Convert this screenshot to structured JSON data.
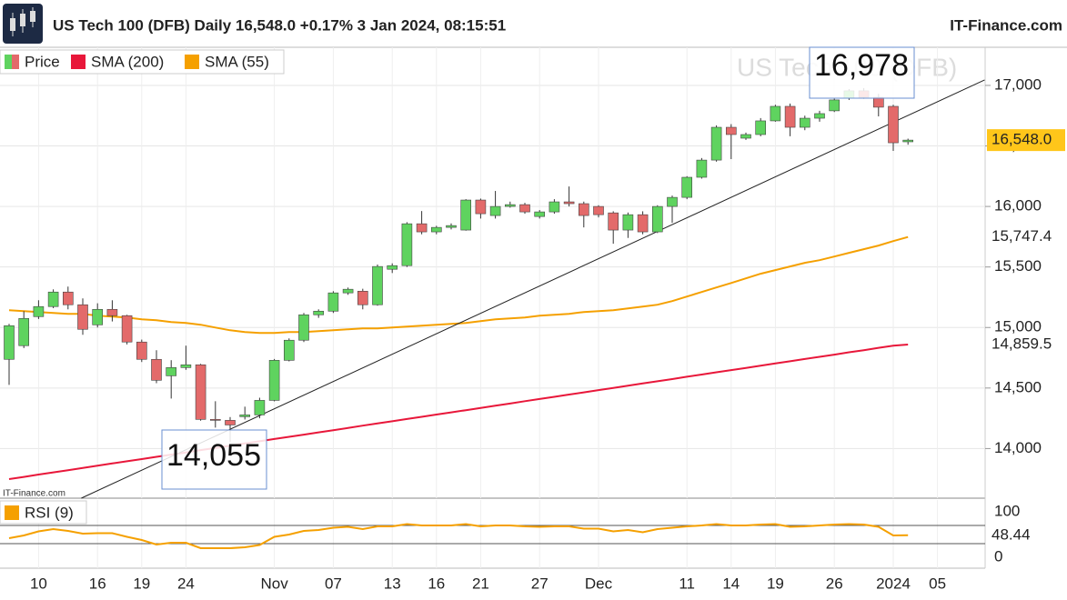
{
  "chart_data": {
    "type": "candlestick",
    "title": "US Tech 100 (DFB) Daily 16,548.0 +0.17% 3 Jan 2024, 08:15:51",
    "source": "IT-Finance.com",
    "source_small": "IT-Finance.com",
    "watermark": "US Tech 100 (DFB)",
    "categories": [
      null,
      null,
      "10",
      null,
      null,
      null,
      "16",
      null,
      null,
      "19",
      null,
      null,
      "24",
      null,
      null,
      null,
      null,
      null,
      "Nov",
      null,
      null,
      null,
      "07",
      null,
      null,
      null,
      "13",
      null,
      null,
      "16",
      null,
      null,
      "21",
      null,
      null,
      null,
      "27",
      null,
      null,
      null,
      "Dec",
      null,
      null,
      null,
      null,
      null,
      "11",
      null,
      null,
      "14",
      null,
      null,
      "19",
      null,
      null,
      null,
      "26",
      null,
      null,
      null,
      "2024",
      null,
      null,
      "05"
    ],
    "price": {
      "name": "Price",
      "up_color": "#5fd35f",
      "down_color": "#e36a6a",
      "last_label": "16,548.0",
      "tag_color": "#ffc61a",
      "open": [
        14737,
        14850,
        15090,
        15173,
        15293,
        15188,
        15022,
        15150,
        15098,
        14880,
        14737,
        14601,
        14669,
        14692,
        14241,
        14233,
        14263,
        14278,
        14398,
        14729,
        14895,
        15105,
        15135,
        15286,
        15300,
        15188,
        15481,
        15511,
        15857,
        15790,
        15827,
        15805,
        16053,
        15925,
        16000,
        16015,
        15917,
        15955,
        16038,
        16023,
        16000,
        15947,
        15805,
        15932,
        15790,
        16000,
        16075,
        16241,
        16383,
        16654,
        16564,
        16594,
        16707,
        16827,
        16654,
        16729,
        16790,
        16895,
        16955,
        16902,
        16827,
        16534,
        null,
        null
      ],
      "high": [
        15030,
        15135,
        15225,
        15315,
        15338,
        15240,
        15200,
        15225,
        15105,
        14900,
        14812,
        14730,
        14850,
        14700,
        14391,
        14260,
        14346,
        14420,
        14740,
        14910,
        15120,
        15150,
        15300,
        15330,
        15320,
        15520,
        15530,
        15870,
        15962,
        15840,
        15860,
        16060,
        16065,
        16128,
        16040,
        16030,
        15970,
        16060,
        16165,
        16040,
        16010,
        15960,
        15950,
        15960,
        16010,
        16090,
        16250,
        16400,
        16670,
        16680,
        16610,
        16730,
        16840,
        16850,
        16750,
        16790,
        16890,
        16970,
        16978,
        16930,
        16840,
        16560,
        null,
        null
      ],
      "low": [
        14526,
        14830,
        15070,
        15160,
        15150,
        14940,
        15000,
        15050,
        14860,
        14715,
        14540,
        14413,
        14650,
        14230,
        14173,
        14055,
        14240,
        14250,
        14390,
        14720,
        14880,
        15080,
        15120,
        15270,
        15150,
        15180,
        15450,
        15500,
        15770,
        15770,
        15810,
        15800,
        15900,
        15900,
        15990,
        15940,
        15900,
        15940,
        16000,
        15827,
        15910,
        15692,
        15740,
        15770,
        15780,
        15865,
        16060,
        16230,
        16370,
        16391,
        16550,
        16580,
        16700,
        16580,
        16630,
        16700,
        16780,
        16880,
        16890,
        16744,
        16459,
        16510,
        null,
        null
      ],
      "close": [
        15015,
        15075,
        15173,
        15293,
        15188,
        14985,
        15150,
        15098,
        14880,
        14737,
        14564,
        14669,
        14692,
        14241,
        14233,
        14195,
        14278,
        14398,
        14729,
        14895,
        15105,
        15135,
        15286,
        15316,
        15188,
        15504,
        15511,
        15857,
        15790,
        15827,
        15842,
        16053,
        15940,
        16000,
        16015,
        15955,
        15955,
        16038,
        16023,
        15925,
        15932,
        15805,
        15932,
        15790,
        16000,
        16075,
        16241,
        16383,
        16654,
        16594,
        16594,
        16707,
        16827,
        16654,
        16729,
        16767,
        16880,
        16955,
        16902,
        16820,
        16526,
        16548,
        null,
        null
      ]
    },
    "series": [
      {
        "name": "SMA (200)",
        "color": "#e8173a",
        "last_label": "14,859.5",
        "values": [
          13748,
          13766,
          13785,
          13803,
          13821,
          13840,
          13858,
          13877,
          13895,
          13913,
          13932,
          13950,
          13968,
          13987,
          14005,
          14024,
          14042,
          14060,
          14079,
          14097,
          14115,
          14134,
          14152,
          14170,
          14189,
          14207,
          14225,
          14244,
          14262,
          14281,
          14299,
          14317,
          14336,
          14354,
          14372,
          14391,
          14409,
          14427,
          14446,
          14464,
          14483,
          14501,
          14519,
          14538,
          14556,
          14574,
          14593,
          14611,
          14630,
          14648,
          14666,
          14685,
          14703,
          14721,
          14740,
          14758,
          14776,
          14795,
          14813,
          14832,
          14850,
          14859.5,
          null,
          null
        ]
      },
      {
        "name": "SMA (55)",
        "color": "#f5a000",
        "last_label": "15,747.4",
        "values": [
          15143,
          15135,
          15128,
          15120,
          15113,
          15113,
          15098,
          15090,
          15083,
          15068,
          15060,
          15045,
          15037,
          15023,
          15000,
          14977,
          14962,
          14955,
          14955,
          14962,
          14962,
          14970,
          14977,
          14985,
          14992,
          14992,
          15000,
          15008,
          15015,
          15023,
          15030,
          15037,
          15053,
          15068,
          15075,
          15083,
          15098,
          15105,
          15113,
          15128,
          15135,
          15143,
          15158,
          15173,
          15188,
          15218,
          15256,
          15293,
          15331,
          15368,
          15406,
          15444,
          15474,
          15504,
          15534,
          15556,
          15586,
          15617,
          15647,
          15677,
          15714,
          15747.4,
          null,
          null
        ]
      }
    ],
    "ylim": [
      13590,
      17315
    ],
    "yticks": [
      {
        "value": 14000,
        "label": "14,000"
      },
      {
        "value": 14500,
        "label": "14,500"
      },
      {
        "value": 15000,
        "label": "15,000"
      },
      {
        "value": 15500,
        "label": "15,500"
      },
      {
        "value": 16000,
        "label": "16,000"
      },
      {
        "value": 16500,
        "label": "16,500"
      },
      {
        "value": 17000,
        "label": "17,000"
      }
    ],
    "grid": true,
    "trendline": {
      "index": [
        4.9,
        66.2
      ],
      "values": [
        13590,
        17045
      ],
      "color": "#222222"
    },
    "annotations": [
      {
        "text": "14,055"
      },
      {
        "text": "16,978"
      }
    ],
    "rsi": {
      "name": "RSI (9)",
      "color": "#f5a000",
      "ylim": [
        -24,
        126
      ],
      "yticks": [
        0,
        100
      ],
      "levels": [
        70,
        30
      ],
      "last_label": "48.44",
      "values": [
        42,
        48,
        57,
        62,
        58,
        52,
        53,
        53,
        45,
        38,
        28,
        32,
        32,
        20,
        20,
        20,
        22,
        27,
        45,
        50,
        58,
        60,
        65,
        67,
        62,
        68,
        68,
        73,
        70,
        70,
        70,
        73,
        68,
        70,
        70,
        68,
        67,
        68,
        68,
        63,
        63,
        57,
        60,
        55,
        62,
        65,
        68,
        70,
        73,
        70,
        70,
        72,
        73,
        67,
        68,
        70,
        72,
        73,
        72,
        67,
        48,
        48.44,
        null,
        null
      ]
    }
  }
}
